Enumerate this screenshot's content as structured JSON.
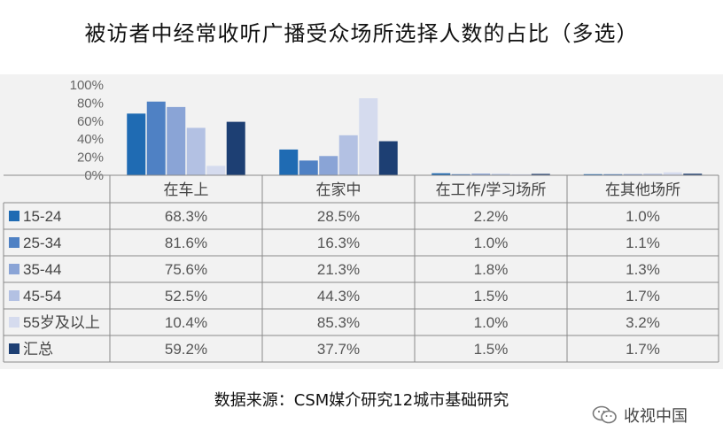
{
  "title": "被访者中经常收听广播受众场所选择人数的占比（多选）",
  "source": "数据来源：CSM媒介研究12城市基础研究",
  "brand": {
    "name": "收视中国",
    "icon": "wechat-icon"
  },
  "chart_data": {
    "type": "bar",
    "categories": [
      "在车上",
      "在家中",
      "在工作/学习场所",
      "在其他场所"
    ],
    "series": [
      {
        "name": "15-24",
        "values": [
          68.3,
          28.5,
          2.2,
          1.0
        ],
        "labels": [
          "68.3%",
          "28.5%",
          "2.2%",
          "1.0%"
        ],
        "color": "#1f6bb3"
      },
      {
        "name": "25-34",
        "values": [
          81.6,
          16.3,
          1.0,
          1.1
        ],
        "labels": [
          "81.6%",
          "16.3%",
          "1.0%",
          "1.1%"
        ],
        "color": "#4f81c4"
      },
      {
        "name": "35-44",
        "values": [
          75.6,
          21.3,
          1.8,
          1.3
        ],
        "labels": [
          "75.6%",
          "21.3%",
          "1.8%",
          "1.3%"
        ],
        "color": "#8aa4d6"
      },
      {
        "name": "45-54",
        "values": [
          52.5,
          44.3,
          1.5,
          1.7
        ],
        "labels": [
          "52.5%",
          "44.3%",
          "1.5%",
          "1.7%"
        ],
        "color": "#b3c1e3"
      },
      {
        "name": "55岁及以上",
        "values": [
          10.4,
          85.3,
          1.0,
          3.2
        ],
        "labels": [
          "10.4%",
          "85.3%",
          "1.0%",
          "3.2%"
        ],
        "color": "#d5dbee"
      },
      {
        "name": "汇总",
        "values": [
          59.2,
          37.7,
          1.5,
          1.7
        ],
        "labels": [
          "59.2%",
          "37.7%",
          "1.5%",
          "1.7%"
        ],
        "color": "#1d3f73"
      }
    ],
    "yticks": [
      "100%",
      "80%",
      "60%",
      "40%",
      "20%",
      "0%"
    ],
    "ylim": [
      0,
      100
    ],
    "legend": "table-rows"
  }
}
